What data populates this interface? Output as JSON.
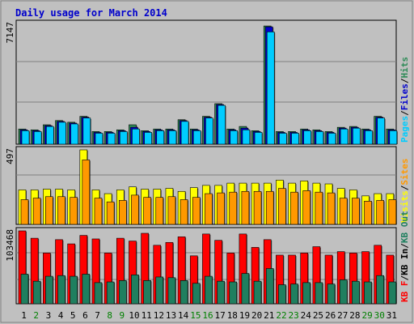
{
  "chart_data": {
    "type": "bar",
    "title": "Daily usage for March 2014",
    "days": [
      "1",
      "2",
      "3",
      "4",
      "5",
      "6",
      "7",
      "8",
      "9",
      "10",
      "11",
      "12",
      "13",
      "14",
      "15",
      "16",
      "17",
      "18",
      "19",
      "20",
      "21",
      "22",
      "23",
      "24",
      "25",
      "26",
      "27",
      "28",
      "29",
      "30",
      "31"
    ],
    "weekend_days": [
      "2",
      "8",
      "9",
      "15",
      "16",
      "22",
      "23",
      "29",
      "30"
    ],
    "panels": [
      {
        "id": "top",
        "ymax_label": "7147",
        "ymax": 7147,
        "legend": [
          "Pages",
          "Files",
          "Hits"
        ],
        "series": [
          {
            "name": "Hits",
            "color": "#2e8b57",
            "values": [
              900,
              850,
              1150,
              1400,
              1300,
              1650,
              750,
              750,
              850,
              1150,
              800,
              900,
              900,
              1450,
              900,
              1650,
              2400,
              900,
              1050,
              800,
              7000,
              750,
              750,
              900,
              850,
              750,
              1000,
              1050,
              900,
              1650,
              900
            ]
          },
          {
            "name": "Files",
            "color": "#0000cc",
            "values": [
              850,
              800,
              1100,
              1350,
              1250,
              1600,
              700,
              700,
              800,
              1000,
              750,
              850,
              850,
              1400,
              850,
              1600,
              2350,
              850,
              950,
              750,
              6950,
              700,
              700,
              850,
              800,
              700,
              950,
              1000,
              850,
              1600,
              850
            ]
          },
          {
            "name": "Pages",
            "color": "#00ccff",
            "values": [
              800,
              750,
              1050,
              1300,
              1200,
              1550,
              650,
              650,
              750,
              900,
              700,
              800,
              800,
              1350,
              800,
              1550,
              2300,
              800,
              850,
              700,
              6650,
              650,
              650,
              800,
              750,
              650,
              900,
              950,
              800,
              1550,
              800
            ]
          }
        ]
      },
      {
        "id": "middle",
        "ymax_label": "497",
        "ymax": 497,
        "legend": [
          "Visits",
          "Sites"
        ],
        "series": [
          {
            "name": "Visits",
            "color": "#ffff00",
            "values": [
              230,
              230,
              235,
              235,
              230,
              500,
              230,
              205,
              230,
              250,
              235,
              235,
              240,
              220,
              245,
              260,
              260,
              275,
              275,
              275,
              275,
              295,
              275,
              290,
              275,
              270,
              240,
              230,
              190,
              205,
              205
            ]
          },
          {
            "name": "Sites",
            "color": "#ff9900",
            "values": [
              165,
              175,
              185,
              185,
              180,
              430,
              175,
              150,
              160,
              195,
              180,
              180,
              185,
              165,
              180,
              205,
              210,
              215,
              220,
              220,
              220,
              240,
              215,
              225,
              215,
              210,
              175,
              175,
              155,
              160,
              165
            ]
          }
        ]
      },
      {
        "id": "bottom",
        "ymax_label": "103468",
        "ymax": 103468,
        "legend": [
          "KB F",
          "KB In",
          "KB Out"
        ],
        "series": [
          {
            "name": "KB F",
            "color": "#ff0000",
            "values": [
              103468,
              93000,
              72000,
              91000,
              85000,
              97000,
              92000,
              72000,
              93000,
              89000,
              100000,
              83000,
              87000,
              95000,
              68000,
              99000,
              90000,
              72000,
              99000,
              80000,
              91000,
              69000,
              69000,
              72000,
              81000,
              69000,
              74000,
              72000,
              74000,
              83000,
              69000
            ]
          },
          {
            "name": "KB Out",
            "color": "#1f7f5f",
            "values": [
              42000,
              32000,
              39000,
              40000,
              39000,
              42000,
              30000,
              31000,
              33000,
              41000,
              33000,
              38000,
              37000,
              33000,
              29000,
              39000,
              32000,
              31000,
              43000,
              32000,
              50000,
              27000,
              28000,
              30000,
              30000,
              28000,
              34000,
              32000,
              31000,
              40000,
              31000
            ]
          }
        ]
      }
    ]
  }
}
